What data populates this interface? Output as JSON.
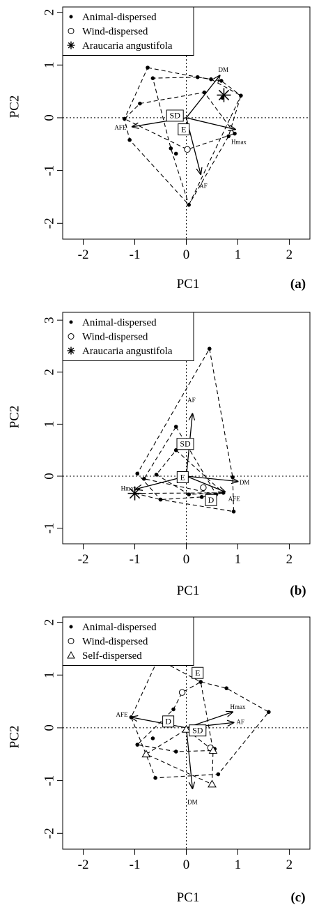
{
  "chart_data": [
    {
      "type": "scatter",
      "panel_label": "(a)",
      "xlabel": "PC1",
      "ylabel": "PC2",
      "xlim": [
        -2.4,
        2.4
      ],
      "ylim": [
        -2.3,
        2.1
      ],
      "x_ticks": [
        "-2",
        "-1",
        "0",
        "1",
        "2"
      ],
      "y_ticks": [
        "-2",
        "-1",
        "0",
        "1",
        "2"
      ],
      "x_tick_values": [
        -2,
        -1,
        0,
        1,
        2
      ],
      "y_tick_values": [
        -2,
        -1,
        0,
        1,
        2
      ],
      "legend": {
        "position": "top-left",
        "entries": [
          {
            "label": "Animal-dispersed",
            "marker": "filled-circle"
          },
          {
            "label": "Wind-dispersed",
            "marker": "open-circle"
          },
          {
            "label": "Araucaria angustifola",
            "marker": "asterisk"
          }
        ]
      },
      "series": [
        {
          "marker": "filled-circle",
          "points": [
            [
              -0.75,
              0.95
            ],
            [
              -0.65,
              0.75
            ],
            [
              -0.9,
              0.27
            ],
            [
              -1.2,
              -0.02
            ],
            [
              -1.1,
              -0.42
            ],
            [
              -0.3,
              -0.58
            ],
            [
              -0.2,
              -0.68
            ],
            [
              0.05,
              -1.65
            ],
            [
              0.22,
              0.77
            ],
            [
              0.48,
              0.73
            ],
            [
              0.68,
              0.7
            ],
            [
              0.7,
              0.38
            ],
            [
              0.82,
              -0.35
            ],
            [
              0.94,
              -0.3
            ],
            [
              1.06,
              0.42
            ],
            [
              0.35,
              0.48
            ]
          ]
        },
        {
          "marker": "open-circle",
          "points": [
            [
              0.02,
              -0.6
            ]
          ]
        },
        {
          "marker": "asterisk",
          "points": [
            [
              0.73,
              0.43
            ]
          ]
        }
      ],
      "hulls": [
        [
          [
            -0.75,
            0.95
          ],
          [
            0.22,
            0.77
          ],
          [
            0.68,
            0.7
          ],
          [
            1.06,
            0.42
          ],
          [
            0.05,
            -1.65
          ],
          [
            -1.1,
            -0.42
          ],
          [
            -1.2,
            -0.02
          ]
        ],
        [
          [
            0.22,
            0.77
          ],
          [
            0.48,
            0.73
          ],
          [
            1.06,
            0.42
          ],
          [
            0.82,
            -0.35
          ],
          [
            0.05,
            -1.65
          ],
          [
            -0.3,
            -0.58
          ],
          [
            -0.65,
            0.75
          ]
        ],
        [
          [
            -0.9,
            0.27
          ],
          [
            0.35,
            0.48
          ],
          [
            0.94,
            -0.3
          ],
          [
            0.02,
            -0.6
          ],
          [
            -1.2,
            -0.02
          ]
        ]
      ],
      "vectors": [
        {
          "label": "DM",
          "to": [
            0.65,
            0.8
          ],
          "label_at": [
            0.72,
            0.9
          ]
        },
        {
          "label": "AFE",
          "to": [
            -1.05,
            -0.17
          ],
          "label_at": [
            -1.28,
            -0.2
          ]
        },
        {
          "label": "Hmax",
          "to": [
            0.95,
            -0.22
          ],
          "label_at": [
            1.02,
            -0.47
          ]
        },
        {
          "label": "AF",
          "to": [
            0.28,
            -1.07
          ],
          "label_at": [
            0.33,
            -1.3
          ]
        }
      ],
      "boxes": [
        {
          "label": "SD",
          "at": [
            -0.22,
            0.04
          ]
        },
        {
          "label": "E",
          "at": [
            -0.05,
            -0.22
          ]
        }
      ]
    },
    {
      "type": "scatter",
      "panel_label": "(b)",
      "xlabel": "PC1",
      "ylabel": "PC2",
      "xlim": [
        -2.4,
        2.4
      ],
      "ylim": [
        -1.3,
        3.15
      ],
      "x_ticks": [
        "-2",
        "-1",
        "0",
        "1",
        "2"
      ],
      "y_ticks": [
        "-1",
        "0",
        "1",
        "2",
        "3"
      ],
      "x_tick_values": [
        -2,
        -1,
        0,
        1,
        2
      ],
      "y_tick_values": [
        -1,
        0,
        1,
        2,
        3
      ],
      "legend": {
        "position": "top-left",
        "entries": [
          {
            "label": "Animal-dispersed",
            "marker": "filled-circle"
          },
          {
            "label": "Wind-dispersed",
            "marker": "open-circle"
          },
          {
            "label": "Araucaria angustifola",
            "marker": "asterisk"
          }
        ]
      },
      "series": [
        {
          "marker": "filled-circle",
          "points": [
            [
              0.45,
              2.45
            ],
            [
              -0.95,
              0.05
            ],
            [
              -0.82,
              -0.05
            ],
            [
              -0.58,
              0.03
            ],
            [
              -0.5,
              -0.45
            ],
            [
              -0.2,
              0.95
            ],
            [
              -0.2,
              0.5
            ],
            [
              0.05,
              -0.35
            ],
            [
              0.3,
              -0.4
            ],
            [
              0.58,
              -0.35
            ],
            [
              0.72,
              -0.32
            ],
            [
              0.9,
              -0.02
            ],
            [
              0.92,
              -0.68
            ]
          ]
        },
        {
          "marker": "open-circle",
          "points": [
            [
              0.33,
              -0.22
            ]
          ]
        },
        {
          "marker": "asterisk",
          "points": [
            [
              -1.0,
              -0.33
            ]
          ]
        }
      ],
      "hulls": [
        [
          [
            0.45,
            2.45
          ],
          [
            0.9,
            -0.02
          ],
          [
            0.92,
            -0.68
          ],
          [
            -0.5,
            -0.45
          ],
          [
            -0.95,
            0.05
          ]
        ],
        [
          [
            -0.2,
            0.95
          ],
          [
            0.58,
            -0.35
          ],
          [
            -0.82,
            -0.05
          ]
        ],
        [
          [
            -0.2,
            0.5
          ],
          [
            0.72,
            -0.32
          ],
          [
            0.05,
            -0.35
          ],
          [
            -0.58,
            0.03
          ]
        ],
        [
          [
            -1.0,
            -0.33
          ],
          [
            0.72,
            -0.32
          ],
          [
            0.3,
            -0.4
          ],
          [
            -0.5,
            -0.45
          ]
        ]
      ],
      "vectors": [
        {
          "label": "AF",
          "to": [
            0.12,
            1.2
          ],
          "label_at": [
            0.1,
            1.45
          ]
        },
        {
          "label": "DM",
          "to": [
            1.0,
            -0.1
          ],
          "label_at": [
            1.13,
            -0.13
          ]
        },
        {
          "label": "AFE",
          "to": [
            0.75,
            -0.3
          ],
          "label_at": [
            0.93,
            -0.45
          ]
        },
        {
          "label": "Hmax",
          "to": [
            -0.98,
            -0.25
          ],
          "label_at": [
            -1.12,
            -0.25
          ]
        }
      ],
      "boxes": [
        {
          "label": "SD",
          "at": [
            -0.02,
            0.62
          ]
        },
        {
          "label": "E",
          "at": [
            -0.07,
            -0.02
          ]
        },
        {
          "label": "D",
          "at": [
            0.48,
            -0.46
          ]
        }
      ]
    },
    {
      "type": "scatter",
      "panel_label": "(c)",
      "xlabel": "PC1",
      "ylabel": "PC2",
      "xlim": [
        -2.4,
        2.4
      ],
      "ylim": [
        -2.3,
        2.1
      ],
      "x_ticks": [
        "-2",
        "-1",
        "0",
        "1",
        "2"
      ],
      "y_ticks": [
        "-2",
        "-1",
        "0",
        "1",
        "2"
      ],
      "x_tick_values": [
        -2,
        -1,
        0,
        1,
        2
      ],
      "y_tick_values": [
        -2,
        -1,
        0,
        1,
        2
      ],
      "legend": {
        "position": "top-left",
        "entries": [
          {
            "label": "Animal-dispersed",
            "marker": "filled-circle"
          },
          {
            "label": "Wind-dispersed",
            "marker": "open-circle"
          },
          {
            "label": "Self-dispersed",
            "marker": "open-triangle"
          }
        ]
      },
      "series": [
        {
          "marker": "filled-circle",
          "points": [
            [
              -1.07,
              0.2
            ],
            [
              -0.95,
              -0.32
            ],
            [
              -0.65,
              -0.2
            ],
            [
              -0.6,
              -0.95
            ],
            [
              -0.25,
              0.35
            ],
            [
              -0.2,
              -0.45
            ],
            [
              0.28,
              0.87
            ],
            [
              0.78,
              0.75
            ],
            [
              1.6,
              0.3
            ],
            [
              0.55,
              -0.4
            ],
            [
              0.62,
              -0.88
            ]
          ]
        },
        {
          "marker": "open-circle",
          "points": [
            [
              -0.08,
              0.67
            ],
            [
              0.47,
              -0.38
            ]
          ]
        },
        {
          "marker": "open-triangle",
          "points": [
            [
              -0.78,
              -0.5
            ],
            [
              0.0,
              -0.03
            ],
            [
              0.52,
              -0.43
            ],
            [
              0.5,
              -1.07
            ]
          ]
        }
      ],
      "hulls": [
        [
          [
            -0.55,
            1.3
          ],
          [
            0.28,
            0.87
          ],
          [
            0.78,
            0.75
          ],
          [
            1.6,
            0.3
          ],
          [
            0.62,
            -0.88
          ],
          [
            -0.6,
            -0.95
          ],
          [
            -1.07,
            0.2
          ]
        ],
        [
          [
            -0.25,
            0.35
          ],
          [
            -0.08,
            0.67
          ],
          [
            0.28,
            0.87
          ],
          [
            0.52,
            -0.43
          ],
          [
            -0.2,
            -0.45
          ],
          [
            -0.95,
            -0.32
          ]
        ],
        [
          [
            -0.78,
            -0.5
          ],
          [
            0.0,
            -0.03
          ],
          [
            0.52,
            -0.43
          ],
          [
            0.5,
            -1.07
          ]
        ]
      ],
      "vectors": [
        {
          "label": "AFE",
          "to": [
            -1.07,
            0.2
          ],
          "label_at": [
            -1.25,
            0.24
          ]
        },
        {
          "label": "Hmax",
          "to": [
            0.9,
            0.3
          ],
          "label_at": [
            1.0,
            0.38
          ]
        },
        {
          "label": "AF",
          "to": [
            0.92,
            0.1
          ],
          "label_at": [
            1.05,
            0.1
          ]
        },
        {
          "label": "DM",
          "to": [
            0.12,
            -1.15
          ],
          "label_at": [
            0.12,
            -1.42
          ]
        }
      ],
      "boxes": [
        {
          "label": "E",
          "at": [
            0.22,
            1.04
          ]
        },
        {
          "label": "D",
          "at": [
            -0.35,
            0.12
          ]
        },
        {
          "label": "SD",
          "at": [
            0.22,
            -0.05
          ]
        }
      ]
    }
  ]
}
